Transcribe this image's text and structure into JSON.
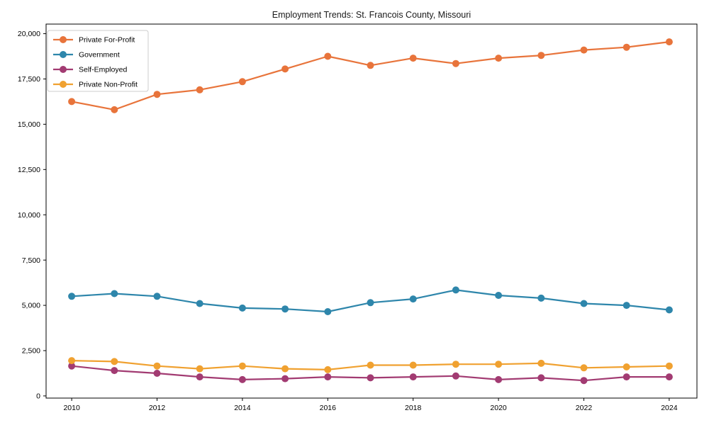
{
  "chart_data": {
    "type": "line",
    "title": "Employment Trends: St. Francois County, Missouri",
    "xlabel": "",
    "ylabel": "",
    "x": [
      2010,
      2011,
      2012,
      2013,
      2014,
      2015,
      2016,
      2017,
      2018,
      2019,
      2020,
      2021,
      2022,
      2023,
      2024
    ],
    "series": [
      {
        "name": "Private For-Profit",
        "color": "#E8743B",
        "values": [
          16250,
          15800,
          16650,
          16900,
          17350,
          18050,
          18750,
          18250,
          18650,
          18350,
          18650,
          18800,
          19100,
          19250,
          19550
        ]
      },
      {
        "name": "Government",
        "color": "#2E86AB",
        "values": [
          5500,
          5650,
          5500,
          5100,
          4850,
          4800,
          4650,
          5150,
          5350,
          5850,
          5550,
          5400,
          5100,
          5000,
          4750
        ]
      },
      {
        "name": "Self-Employed",
        "color": "#A23B72",
        "values": [
          1650,
          1400,
          1250,
          1050,
          900,
          950,
          1050,
          1000,
          1050,
          1100,
          900,
          1000,
          850,
          1050,
          1050
        ]
      },
      {
        "name": "Private Non-Profit",
        "color": "#F0A130",
        "values": [
          1950,
          1900,
          1650,
          1500,
          1650,
          1500,
          1450,
          1700,
          1700,
          1750,
          1750,
          1800,
          1550,
          1600,
          1650
        ]
      }
    ],
    "xticks": [
      2010,
      2012,
      2014,
      2016,
      2018,
      2020,
      2022,
      2024
    ],
    "xtick_labels": [
      "2010",
      "2012",
      "2014",
      "2016",
      "2018",
      "2020",
      "2022",
      "2024"
    ],
    "yticks": [
      0,
      2500,
      5000,
      7500,
      10000,
      12500,
      15000,
      17500,
      20000
    ],
    "ytick_labels": [
      "0",
      "2,500",
      "5,000",
      "7,500",
      "10,000",
      "12,500",
      "15,000",
      "17,500",
      "20,000"
    ],
    "xlim": [
      2009.4,
      2024.65
    ],
    "ylim": [
      -120,
      20530
    ],
    "grid": false,
    "legend_position": "upper-left",
    "legend_entries": [
      "Private For-Profit",
      "Government",
      "Self-Employed",
      "Private Non-Profit"
    ]
  }
}
